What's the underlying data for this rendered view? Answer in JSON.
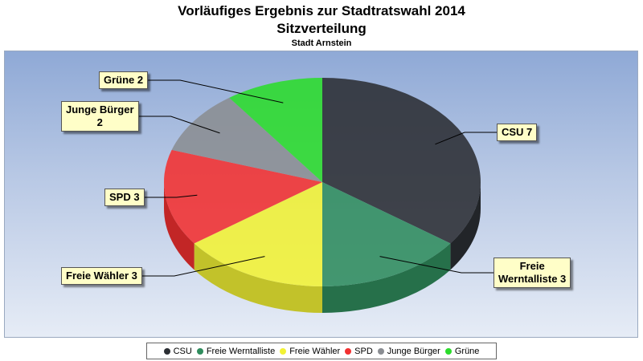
{
  "chart_data": {
    "type": "pie",
    "title": "Vorläufiges Ergebnis zur Stadtratswahl 2014",
    "subtitle": "Sitzverteilung",
    "caption": "Stadt Arnstein",
    "categories": [
      "CSU",
      "Freie Werntalliste",
      "Freie Wähler",
      "SPD",
      "Junge Bürger",
      "Grüne"
    ],
    "values": [
      7,
      3,
      3,
      3,
      2,
      2
    ],
    "labels": [
      "CSU 7",
      "Freie\nWerntalliste 3",
      "Freie Wähler 3",
      "SPD 3",
      "Junge Bürger\n2",
      "Grüne 2"
    ],
    "colors": [
      "#2b2e33",
      "#2f8c5d",
      "#f2f234",
      "#f23030",
      "#8a8d92",
      "#2bdc2b"
    ],
    "legend_position": "bottom"
  }
}
